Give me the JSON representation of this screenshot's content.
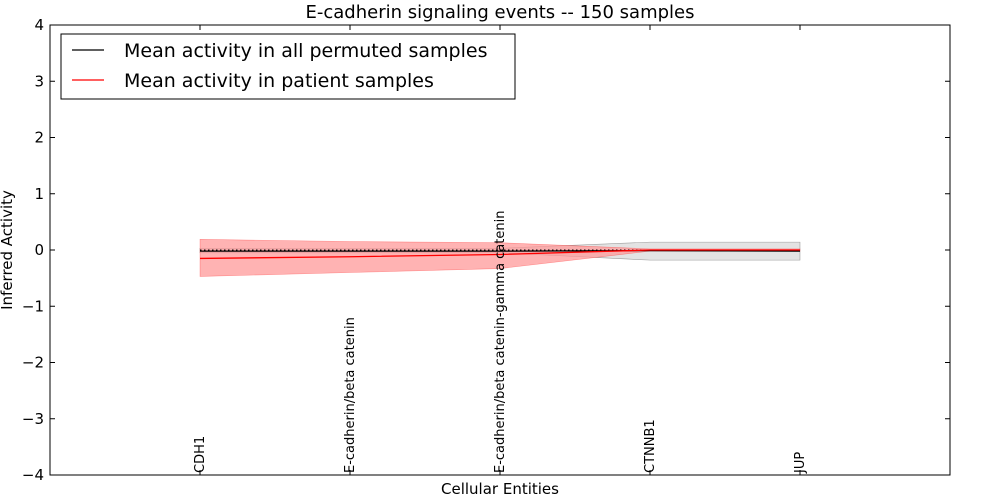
{
  "chart_data": {
    "type": "line",
    "title": "E-cadherin signaling events -- 150 samples",
    "xlabel": "Cellular Entities",
    "ylabel": "Inferred Activity",
    "ylim": [
      -4,
      4
    ],
    "yticks": [
      4,
      3,
      2,
      1,
      0,
      -1,
      -2,
      -3,
      -4
    ],
    "ytick_labels": [
      "4",
      "3",
      "2",
      "1",
      "0",
      "−1",
      "−2",
      "−3",
      "−4"
    ],
    "categories": [
      "CDH1",
      "E-cadherin/beta catenin",
      "E-cadherin/beta catenin-gamma catenin",
      "CTNNB1",
      "JUP"
    ],
    "legend_position": "top-left",
    "series": [
      {
        "name": "Mean activity in all permuted samples",
        "color": "#000000",
        "values": [
          -0.02,
          -0.02,
          -0.02,
          -0.01,
          -0.02
        ],
        "band_lower": [
          -0.05,
          -0.05,
          -0.05,
          -0.18,
          -0.18
        ],
        "band_upper": [
          0.03,
          0.03,
          0.03,
          0.14,
          0.14
        ],
        "band_color": "#e0e0e0"
      },
      {
        "name": "Mean activity in patient samples",
        "color": "#ff0000",
        "values": [
          -0.15,
          -0.12,
          -0.08,
          0.0,
          0.0
        ],
        "band_lower": [
          -0.47,
          -0.4,
          -0.33,
          -0.02,
          -0.02
        ],
        "band_upper": [
          0.19,
          0.15,
          0.13,
          0.02,
          0.02
        ],
        "band_color": "#ff9999"
      }
    ],
    "reference_line": {
      "value": 0,
      "style": "dotted"
    }
  }
}
